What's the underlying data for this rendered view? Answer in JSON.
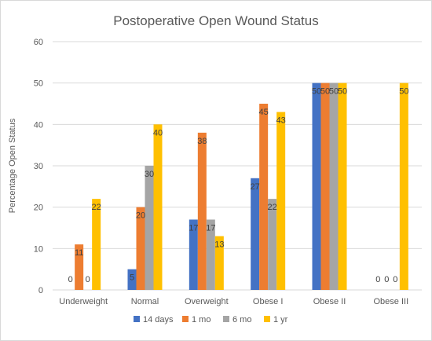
{
  "chart_data": {
    "type": "bar",
    "title": "Postoperative Open Wound Status",
    "ylabel": "Percentage Open Status",
    "xlabel": "",
    "ylim": [
      0,
      60
    ],
    "yticks": [
      0,
      10,
      20,
      30,
      40,
      50,
      60
    ],
    "grid": true,
    "legend_position": "bottom",
    "categories": [
      "Underweight",
      "Normal",
      "Overweight",
      "Obese I",
      "Obese II",
      "Obese III"
    ],
    "series": [
      {
        "name": "14 days",
        "color": "#4472C4",
        "values": [
          0,
          5,
          17,
          27,
          50,
          0
        ]
      },
      {
        "name": "1 mo",
        "color": "#ED7D31",
        "values": [
          11,
          20,
          38,
          45,
          50,
          0
        ]
      },
      {
        "name": "6 mo",
        "color": "#A5A5A5",
        "values": [
          0,
          30,
          17,
          22,
          50,
          0
        ]
      },
      {
        "name": "1 yr",
        "color": "#FFC000",
        "values": [
          22,
          40,
          13,
          43,
          50,
          50
        ]
      }
    ]
  }
}
